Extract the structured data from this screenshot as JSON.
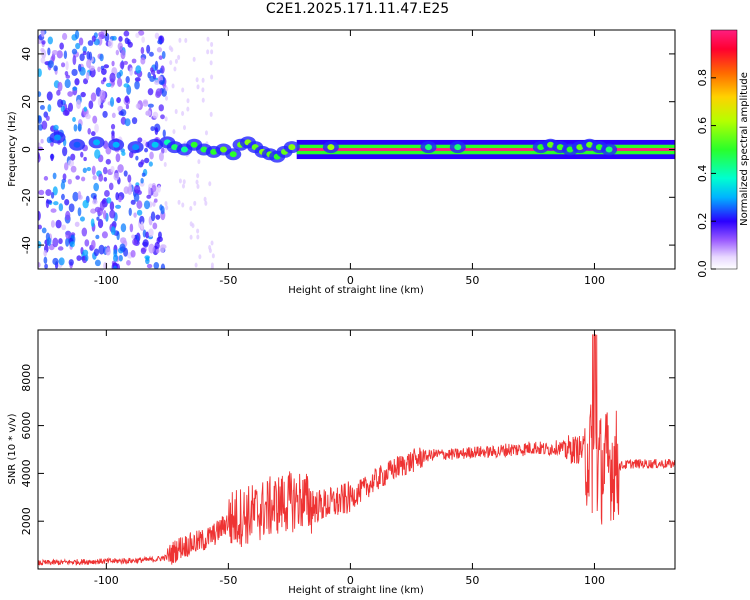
{
  "title": "C2E1.2025.171.11.47.E25",
  "chart_data": [
    {
      "type": "heatmap",
      "xlabel": "Height of straight line (km)",
      "ylabel": "Frequency (Hz)",
      "xlim": [
        -128,
        133
      ],
      "ylim": [
        -50,
        50
      ],
      "xticks": [
        -100,
        -50,
        0,
        50,
        100
      ],
      "yticks": [
        -40,
        -20,
        0,
        20,
        40
      ],
      "colorbar": {
        "label": "Normalized spectral amplitude",
        "range": [
          0,
          1
        ],
        "ticks": [
          0.0,
          0.2,
          0.4,
          0.6,
          0.8
        ],
        "tick_labels": [
          "0.0",
          "0.2",
          "0.4",
          "0.6",
          "0.8"
        ]
      },
      "line_band": {
        "description_values": "narrow band at 0 Hz",
        "x_range": [
          -22,
          133
        ],
        "frequency_center": 0,
        "width_hz": 2,
        "amplitude": 1.0
      },
      "noise_region": {
        "x_range": [
          -128,
          -76
        ],
        "frequency_range": [
          -50,
          50
        ],
        "amplitude_range": [
          0.05,
          0.3
        ]
      },
      "blob_points": [
        {
          "x": -120,
          "y": 5,
          "v": 0.28
        },
        {
          "x": -112,
          "y": 2,
          "v": 0.25
        },
        {
          "x": -104,
          "y": 3,
          "v": 0.3
        },
        {
          "x": -96,
          "y": 2,
          "v": 0.3
        },
        {
          "x": -88,
          "y": 1,
          "v": 0.28
        },
        {
          "x": -80,
          "y": 2,
          "v": 0.32
        },
        {
          "x": -75,
          "y": 3,
          "v": 0.4
        },
        {
          "x": -72,
          "y": 1,
          "v": 0.45
        },
        {
          "x": -68,
          "y": 0,
          "v": 0.42
        },
        {
          "x": -64,
          "y": 2,
          "v": 0.5
        },
        {
          "x": -60,
          "y": 0,
          "v": 0.48
        },
        {
          "x": -56,
          "y": -1,
          "v": 0.5
        },
        {
          "x": -52,
          "y": 0,
          "v": 0.55
        },
        {
          "x": -48,
          "y": -2,
          "v": 0.5
        },
        {
          "x": -45,
          "y": 2,
          "v": 0.55
        },
        {
          "x": -42,
          "y": 3,
          "v": 0.58
        },
        {
          "x": -39,
          "y": 1,
          "v": 0.55
        },
        {
          "x": -36,
          "y": -1,
          "v": 0.58
        },
        {
          "x": -33,
          "y": -2,
          "v": 0.55
        },
        {
          "x": -30,
          "y": -3,
          "v": 0.5
        },
        {
          "x": -27,
          "y": -1,
          "v": 0.55
        },
        {
          "x": -24,
          "y": 1,
          "v": 0.58
        },
        {
          "x": -8,
          "y": 1,
          "v": 0.6
        },
        {
          "x": 32,
          "y": 1,
          "v": 0.45
        },
        {
          "x": 44,
          "y": 1,
          "v": 0.45
        },
        {
          "x": 78,
          "y": 1,
          "v": 0.5
        },
        {
          "x": 82,
          "y": 2,
          "v": 0.55
        },
        {
          "x": 86,
          "y": 1,
          "v": 0.52
        },
        {
          "x": 90,
          "y": 0,
          "v": 0.5
        },
        {
          "x": 94,
          "y": 1,
          "v": 0.55
        },
        {
          "x": 98,
          "y": 2,
          "v": 0.55
        },
        {
          "x": 102,
          "y": 1,
          "v": 0.5
        },
        {
          "x": 106,
          "y": 0,
          "v": 0.45
        }
      ]
    },
    {
      "type": "line",
      "xlabel": "Height of straight line (km)",
      "ylabel": "SNR (10 * v/v)",
      "xlim": [
        -128,
        133
      ],
      "ylim": [
        0,
        10000
      ],
      "xticks": [
        -100,
        -50,
        0,
        50,
        100
      ],
      "yticks": [
        2000,
        4000,
        6000,
        8000
      ],
      "line_color": "#ee3333",
      "series": [
        {
          "x": [
            -128,
            -110,
            -90,
            -80,
            -75,
            -70,
            -60,
            -55,
            -50,
            -45,
            -40,
            -35,
            -30,
            -25,
            -20,
            -15,
            -10,
            -5,
            0,
            5,
            10,
            15,
            20,
            25,
            30,
            35,
            40,
            45,
            50,
            55,
            60,
            65,
            70,
            75,
            80,
            85,
            90,
            95,
            98,
            100,
            102,
            104,
            106,
            108,
            110,
            115,
            120,
            125,
            133
          ],
          "y": [
            250,
            300,
            350,
            400,
            500,
            900,
            1200,
            1500,
            2000,
            2200,
            2300,
            2500,
            2700,
            2800,
            2900,
            2600,
            2700,
            2800,
            3000,
            3300,
            3700,
            4000,
            4300,
            4500,
            4700,
            4800,
            4800,
            4800,
            4900,
            4900,
            4900,
            5000,
            5000,
            5100,
            5000,
            5100,
            5000,
            5000,
            4800,
            4500,
            4200,
            4300,
            4400,
            4400,
            4300,
            4400,
            4400,
            4400,
            4400
          ]
        }
      ]
    }
  ]
}
